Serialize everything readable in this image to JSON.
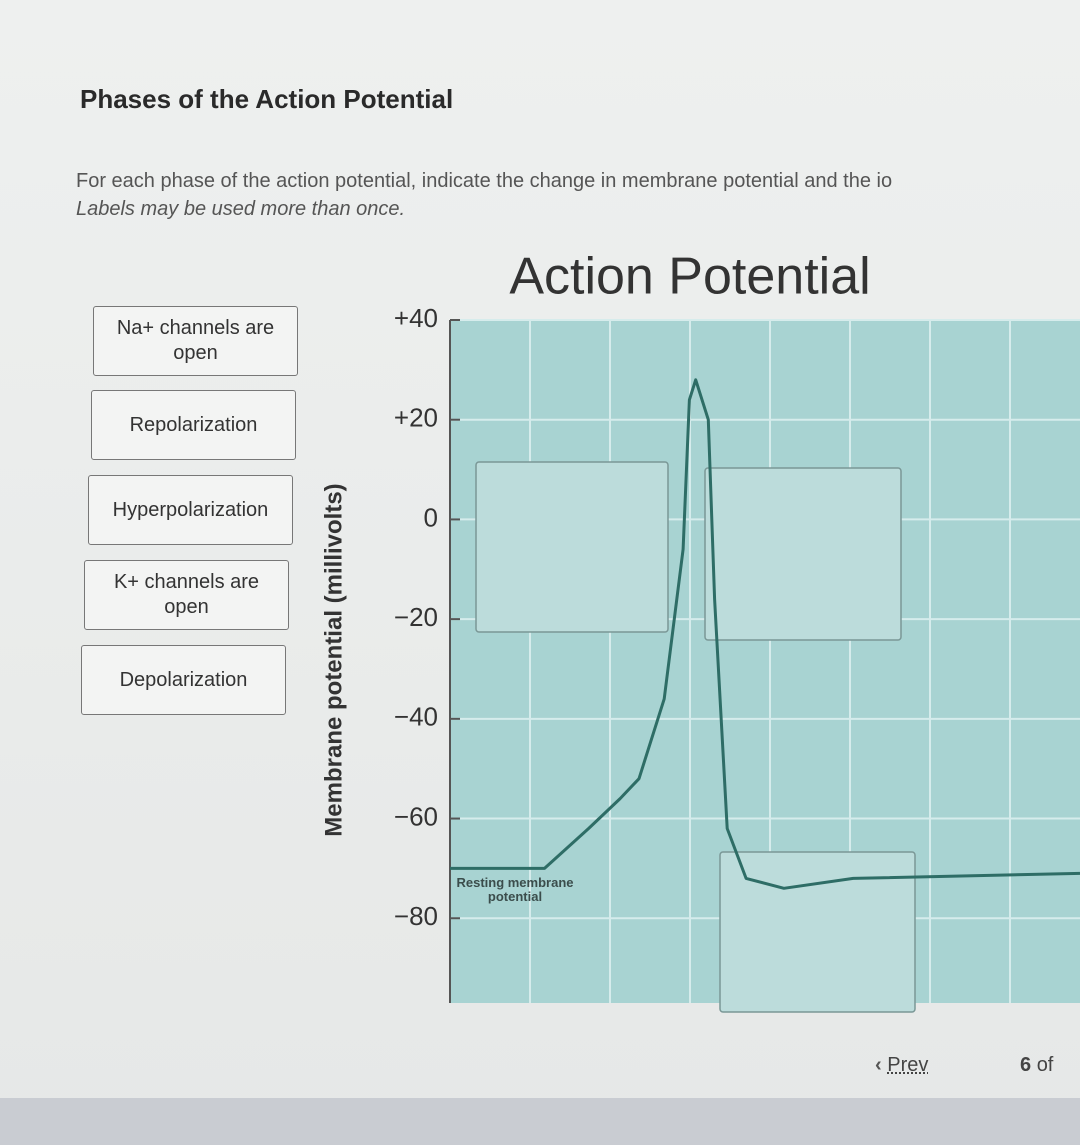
{
  "header": {
    "title": "Phases of the Action Potential"
  },
  "instructions": [
    "For each phase of the action potential, indicate the change in membrane potential and the io",
    "Labels may be used more than once."
  ],
  "labels": [
    "Na+ channels are open",
    "Repolarization",
    "Hyperpolarization",
    "K+ channels are open",
    "Depolarization"
  ],
  "chart_data": {
    "type": "line",
    "title": "Action Potential",
    "y_label": "Membrane potential (millivolts)",
    "annotation": "Resting membrane potential",
    "x": [
      0,
      15,
      22,
      27,
      30,
      34,
      37,
      38,
      39,
      41,
      42,
      44,
      47,
      53,
      64,
      100
    ],
    "values": [
      -70,
      -70,
      -62,
      -56,
      -52,
      -36,
      -6,
      24,
      28,
      20,
      -16,
      -62,
      -72,
      -74,
      -72,
      -71
    ],
    "color": "#2e6d66",
    "xlim": [
      0,
      100
    ],
    "ylim": [
      -97,
      40
    ],
    "yticks": [
      {
        "value": 40,
        "label": "+40"
      },
      {
        "value": 20,
        "label": "+20"
      },
      0,
      {
        "value": -20,
        "label": "−20"
      },
      {
        "value": -40,
        "label": "−40"
      },
      {
        "value": -60,
        "label": "−60"
      },
      {
        "value": -80,
        "label": "−80"
      }
    ],
    "grid": true
  },
  "nav": {
    "prev": "Prev",
    "page": "6",
    "of": "of"
  }
}
